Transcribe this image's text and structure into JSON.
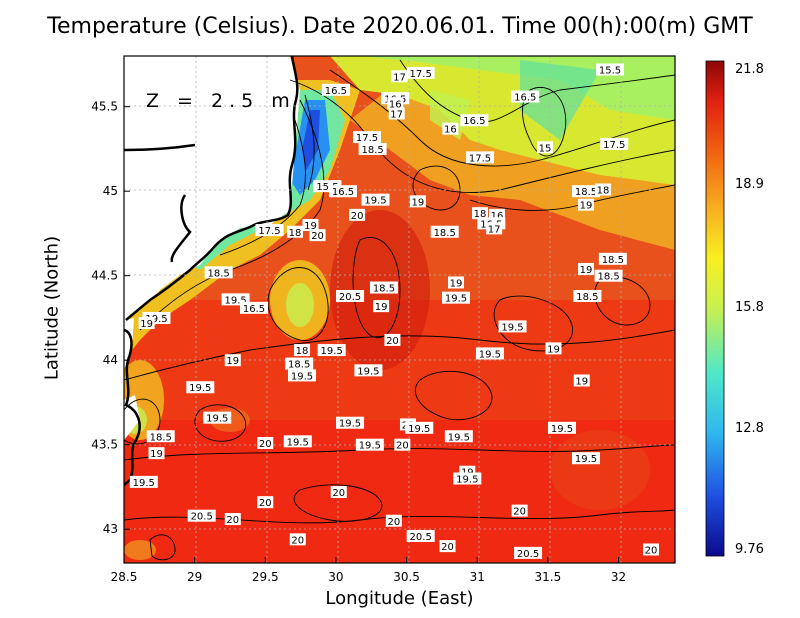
{
  "title": "Temperature (Celsius). Date 2020.06.01. Time 00(h):00(m) GMT",
  "depth_label": "Z = 2.5 m",
  "xlabel": "Longitude (East)",
  "ylabel": "Latitude (North)",
  "x_ticks": [
    "28.5",
    "29",
    "29.5",
    "30",
    "30.5",
    "31",
    "31.5",
    "32"
  ],
  "y_ticks": [
    "45.5",
    "45",
    "44.5",
    "44",
    "43.5",
    "43"
  ],
  "colorbar": {
    "ticks": [
      "21.8",
      "18.9",
      "15.8",
      "12.8",
      "9.76"
    ],
    "min": 9.76,
    "max": 21.8,
    "colors": [
      "#0a0a8c",
      "#1f4fe0",
      "#2fb8f0",
      "#4fe8c8",
      "#c8f050",
      "#f8f020",
      "#f8b020",
      "#f06010",
      "#e02010",
      "#8c0808"
    ]
  },
  "colors": {
    "land": "#ffffff",
    "coast": "#000000",
    "grid": "#b0b0b0"
  },
  "chart_data": {
    "type": "heatmap",
    "title": "Temperature (Celsius). Date 2020.06.01. Time 00(h):00(m) GMT",
    "xlabel": "Longitude (East)",
    "ylabel": "Latitude (North)",
    "xlim": [
      28.5,
      32.4
    ],
    "ylim": [
      42.8,
      45.8
    ],
    "zlim": [
      9.76,
      21.8
    ],
    "contour_labels": [
      {
        "lon": 30.0,
        "lat": 45.6,
        "value": "16.5"
      },
      {
        "lon": 30.6,
        "lat": 45.7,
        "value": "17.5"
      },
      {
        "lon": 30.45,
        "lat": 45.68,
        "value": "17"
      },
      {
        "lon": 31.94,
        "lat": 45.72,
        "value": "15.5"
      },
      {
        "lon": 30.42,
        "lat": 45.55,
        "value": "16.5"
      },
      {
        "lon": 30.42,
        "lat": 45.52,
        "value": "16"
      },
      {
        "lon": 30.43,
        "lat": 45.46,
        "value": "17"
      },
      {
        "lon": 31.34,
        "lat": 45.56,
        "value": "16.5"
      },
      {
        "lon": 30.98,
        "lat": 45.42,
        "value": "16.5"
      },
      {
        "lon": 30.81,
        "lat": 45.37,
        "value": "16"
      },
      {
        "lon": 30.22,
        "lat": 45.32,
        "value": "17.5"
      },
      {
        "lon": 30.26,
        "lat": 45.25,
        "value": "18.5"
      },
      {
        "lon": 31.02,
        "lat": 45.2,
        "value": "17.5"
      },
      {
        "lon": 31.48,
        "lat": 45.26,
        "value": "15"
      },
      {
        "lon": 31.97,
        "lat": 45.28,
        "value": "17.5"
      },
      {
        "lon": 29.94,
        "lat": 45.03,
        "value": "15.5"
      },
      {
        "lon": 30.05,
        "lat": 45.0,
        "value": "16.5"
      },
      {
        "lon": 30.28,
        "lat": 44.95,
        "value": "19.5"
      },
      {
        "lon": 30.58,
        "lat": 44.94,
        "value": "19"
      },
      {
        "lon": 31.77,
        "lat": 45.0,
        "value": "18.5"
      },
      {
        "lon": 31.89,
        "lat": 45.01,
        "value": "18"
      },
      {
        "lon": 31.77,
        "lat": 44.92,
        "value": "19"
      },
      {
        "lon": 30.15,
        "lat": 44.86,
        "value": "20"
      },
      {
        "lon": 31.02,
        "lat": 44.87,
        "value": "18"
      },
      {
        "lon": 31.14,
        "lat": 44.86,
        "value": "16"
      },
      {
        "lon": 31.1,
        "lat": 44.81,
        "value": "16.5"
      },
      {
        "lon": 31.12,
        "lat": 44.78,
        "value": "17"
      },
      {
        "lon": 29.82,
        "lat": 44.8,
        "value": "19"
      },
      {
        "lon": 29.53,
        "lat": 44.77,
        "value": "17.5"
      },
      {
        "lon": 29.71,
        "lat": 44.76,
        "value": "18"
      },
      {
        "lon": 29.87,
        "lat": 44.74,
        "value": "20"
      },
      {
        "lon": 30.77,
        "lat": 44.76,
        "value": "18.5"
      },
      {
        "lon": 31.96,
        "lat": 44.6,
        "value": "18.5"
      },
      {
        "lon": 29.17,
        "lat": 44.52,
        "value": "18.5"
      },
      {
        "lon": 31.77,
        "lat": 44.54,
        "value": "19"
      },
      {
        "lon": 31.93,
        "lat": 44.5,
        "value": "18.5"
      },
      {
        "lon": 30.85,
        "lat": 44.46,
        "value": "19"
      },
      {
        "lon": 30.34,
        "lat": 44.43,
        "value": "18.5"
      },
      {
        "lon": 30.1,
        "lat": 44.38,
        "value": "20.5"
      },
      {
        "lon": 29.29,
        "lat": 44.36,
        "value": "19.5"
      },
      {
        "lon": 31.78,
        "lat": 44.38,
        "value": "18.5"
      },
      {
        "lon": 30.85,
        "lat": 44.37,
        "value": "19.5"
      },
      {
        "lon": 29.42,
        "lat": 44.31,
        "value": "16.5"
      },
      {
        "lon": 30.32,
        "lat": 44.32,
        "value": "19"
      },
      {
        "lon": 28.73,
        "lat": 44.25,
        "value": "19.5"
      },
      {
        "lon": 28.66,
        "lat": 44.22,
        "value": "19"
      },
      {
        "lon": 31.25,
        "lat": 44.2,
        "value": "19.5"
      },
      {
        "lon": 30.4,
        "lat": 44.12,
        "value": "20"
      },
      {
        "lon": 29.76,
        "lat": 44.06,
        "value": "18"
      },
      {
        "lon": 29.97,
        "lat": 44.06,
        "value": "19.5"
      },
      {
        "lon": 31.54,
        "lat": 44.07,
        "value": "19"
      },
      {
        "lon": 31.09,
        "lat": 44.04,
        "value": "19.5"
      },
      {
        "lon": 29.27,
        "lat": 44.0,
        "value": "19"
      },
      {
        "lon": 29.74,
        "lat": 43.98,
        "value": "18.5"
      },
      {
        "lon": 30.23,
        "lat": 43.94,
        "value": "19.5"
      },
      {
        "lon": 29.76,
        "lat": 43.91,
        "value": "19.5"
      },
      {
        "lon": 31.74,
        "lat": 43.88,
        "value": "19"
      },
      {
        "lon": 29.04,
        "lat": 43.84,
        "value": "19.5"
      },
      {
        "lon": 29.16,
        "lat": 43.66,
        "value": "19.5"
      },
      {
        "lon": 30.1,
        "lat": 43.63,
        "value": "19.5"
      },
      {
        "lon": 30.51,
        "lat": 43.62,
        "value": "20"
      },
      {
        "lon": 30.59,
        "lat": 43.6,
        "value": "19.5"
      },
      {
        "lon": 31.6,
        "lat": 43.6,
        "value": "19.5"
      },
      {
        "lon": 28.76,
        "lat": 43.55,
        "value": "18.5"
      },
      {
        "lon": 30.87,
        "lat": 43.55,
        "value": "19.5"
      },
      {
        "lon": 29.73,
        "lat": 43.52,
        "value": "19.5"
      },
      {
        "lon": 29.5,
        "lat": 43.51,
        "value": "20"
      },
      {
        "lon": 30.24,
        "lat": 43.5,
        "value": "19.5"
      },
      {
        "lon": 30.47,
        "lat": 43.5,
        "value": "20"
      },
      {
        "lon": 28.73,
        "lat": 43.45,
        "value": "19"
      },
      {
        "lon": 31.77,
        "lat": 43.42,
        "value": "19.5"
      },
      {
        "lon": 30.93,
        "lat": 43.34,
        "value": "19"
      },
      {
        "lon": 30.93,
        "lat": 43.3,
        "value": "19.5"
      },
      {
        "lon": 28.64,
        "lat": 43.28,
        "value": "19.5"
      },
      {
        "lon": 30.02,
        "lat": 43.22,
        "value": "20"
      },
      {
        "lon": 29.5,
        "lat": 43.16,
        "value": "20"
      },
      {
        "lon": 31.3,
        "lat": 43.11,
        "value": "20"
      },
      {
        "lon": 29.05,
        "lat": 43.08,
        "value": "20.5"
      },
      {
        "lon": 29.27,
        "lat": 43.06,
        "value": "20"
      },
      {
        "lon": 30.41,
        "lat": 43.05,
        "value": "20"
      },
      {
        "lon": 30.6,
        "lat": 42.96,
        "value": "20.5"
      },
      {
        "lon": 29.73,
        "lat": 42.94,
        "value": "20"
      },
      {
        "lon": 30.79,
        "lat": 42.9,
        "value": "20"
      },
      {
        "lon": 31.36,
        "lat": 42.86,
        "value": "20.5"
      },
      {
        "lon": 32.23,
        "lat": 42.88,
        "value": "20"
      }
    ]
  }
}
